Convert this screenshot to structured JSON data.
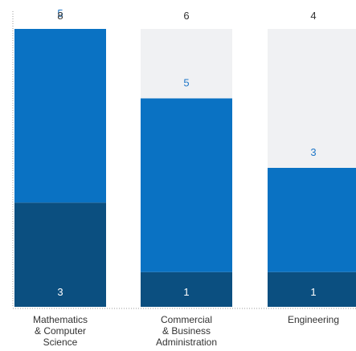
{
  "chart_data": {
    "type": "bar",
    "stacked": true,
    "categories": [
      [
        "Mathematics",
        "& Computer",
        "Science"
      ],
      [
        "Commercial",
        "& Business",
        "Administration"
      ],
      [
        "Engineering"
      ]
    ],
    "totals": [
      8,
      6,
      4
    ],
    "series": [
      {
        "values": [
          3,
          1,
          1
        ],
        "color": "#0b4f80"
      },
      {
        "values": [
          5,
          5,
          3
        ],
        "color": "#0a72c3"
      }
    ],
    "background_color": "#f0f1f3",
    "ylim": [
      0,
      8
    ],
    "grid": false,
    "legend": "none"
  }
}
